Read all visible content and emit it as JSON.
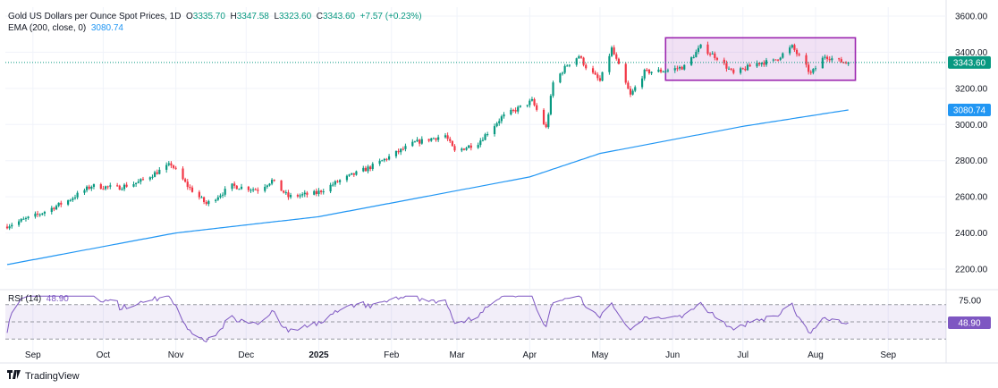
{
  "legend": {
    "title": "Gold US Dollars per Ounce Spot Prices, 1D",
    "open_label": "O",
    "open": "3335.70",
    "high_label": "H",
    "high": "3347.58",
    "low_label": "L",
    "low": "3323.60",
    "close_label": "C",
    "close": "3343.60",
    "change": "+7.57 (+0.23%)",
    "ema_label": "EMA (200, close, 0)",
    "ema_value": "3080.74",
    "rsi_label": "RSI (14)",
    "rsi_value": "48.90"
  },
  "tags": {
    "price": "3343.60",
    "ema": "3080.74",
    "rsi": "48.90"
  },
  "brand": {
    "name": "TradingView",
    "icon": "tradingview-logo-icon"
  },
  "colors": {
    "up": "#089981",
    "down": "#f23645",
    "ema": "#2196f3",
    "rsi": "#7e57c2",
    "box_stroke": "#9c27b0",
    "box_fill": "rgba(156,39,176,0.14)",
    "rsi_band": "rgba(126,87,194,0.10)",
    "price_line": "#089981"
  },
  "chart_data": [
    {
      "type": "candlestick",
      "title": "Gold US Dollars per Ounce Spot Prices, 1D",
      "y_ticks": [
        "3600.00",
        "3400.00",
        "3200.00",
        "3000.00",
        "2800.00",
        "2600.00",
        "2400.00",
        "2200.00"
      ],
      "ylim": [
        2130,
        3640
      ],
      "x_labels": [
        "Sep",
        "Oct",
        "Nov",
        "Dec",
        "2025",
        "Feb",
        "Mar",
        "Apr",
        "May",
        "Jun",
        "Jul",
        "Aug",
        "Sep"
      ],
      "x_label_bold": "2025",
      "approx_close_path": [
        [
          "2024-08-21",
          2440
        ],
        [
          "2024-09-03",
          2500
        ],
        [
          "2024-09-16",
          2580
        ],
        [
          "2024-09-26",
          2660
        ],
        [
          "2024-10-07",
          2650
        ],
        [
          "2024-10-16",
          2680
        ],
        [
          "2024-10-30",
          2780
        ],
        [
          "2024-11-06",
          2660
        ],
        [
          "2024-11-14",
          2560
        ],
        [
          "2024-11-25",
          2660
        ],
        [
          "2024-12-06",
          2640
        ],
        [
          "2024-12-12",
          2690
        ],
        [
          "2024-12-19",
          2600
        ],
        [
          "2024-12-31",
          2620
        ],
        [
          "2025-01-10",
          2690
        ],
        [
          "2025-01-24",
          2770
        ],
        [
          "2025-02-11",
          2900
        ],
        [
          "2025-02-24",
          2940
        ],
        [
          "2025-02-28",
          2850
        ],
        [
          "2025-03-10",
          2900
        ],
        [
          "2025-03-20",
          3040
        ],
        [
          "2025-04-02",
          3130
        ],
        [
          "2025-04-08",
          2980
        ],
        [
          "2025-04-11",
          3230
        ],
        [
          "2025-04-17",
          3330
        ],
        [
          "2025-04-22",
          3380
        ],
        [
          "2025-04-25",
          3320
        ],
        [
          "2025-05-01",
          3240
        ],
        [
          "2025-05-06",
          3420
        ],
        [
          "2025-05-14",
          3160
        ],
        [
          "2025-05-20",
          3290
        ],
        [
          "2025-05-30",
          3300
        ],
        [
          "2025-06-06",
          3320
        ],
        [
          "2025-06-13",
          3430
        ],
        [
          "2025-06-20",
          3370
        ],
        [
          "2025-06-27",
          3280
        ],
        [
          "2025-07-07",
          3340
        ],
        [
          "2025-07-14",
          3350
        ],
        [
          "2025-07-22",
          3430
        ],
        [
          "2025-07-30",
          3280
        ],
        [
          "2025-08-05",
          3380
        ],
        [
          "2025-08-11",
          3350
        ],
        [
          "2025-08-15",
          3343.6
        ]
      ],
      "last": {
        "open": 3335.7,
        "high": 3347.58,
        "low": 3323.6,
        "close": 3343.6
      },
      "ema_200": {
        "name": "EMA (200, close, 0)",
        "points": [
          [
            "2024-08-21",
            2225
          ],
          [
            "2024-11-01",
            2400
          ],
          [
            "2025-01-01",
            2490
          ],
          [
            "2025-04-01",
            2710
          ],
          [
            "2025-05-01",
            2840
          ],
          [
            "2025-07-01",
            2990
          ],
          [
            "2025-08-15",
            3080.74
          ]
        ]
      },
      "highlight_box": {
        "from": "2025-05-29",
        "to": "2025-08-18",
        "low": 3245,
        "high": 3480
      }
    },
    {
      "type": "line",
      "title": "RSI (14)",
      "y_ticks": [
        "75.00"
      ],
      "band": [
        30,
        70
      ],
      "midline": 50,
      "last": 48.9
    }
  ]
}
